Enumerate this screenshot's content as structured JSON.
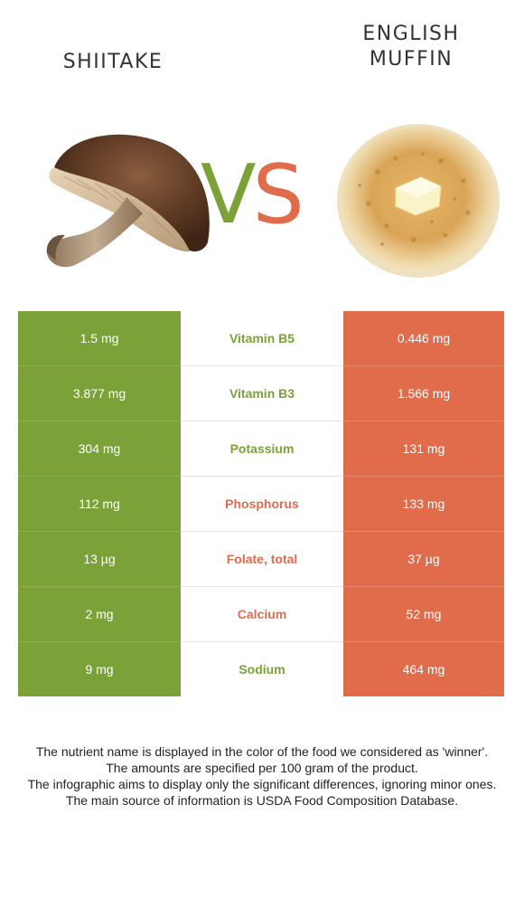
{
  "left_food": {
    "title": "SHIITAKE",
    "image_icon": "shiitake-mushroom-image",
    "color": "#7aa239"
  },
  "right_food": {
    "title_line1": "ENGLISH",
    "title_line2": "MUFFIN",
    "image_icon": "english-muffin-image",
    "color": "#e06c4b"
  },
  "vs": {
    "v": "V",
    "s": "S"
  },
  "rows": [
    {
      "left": "1.5 mg",
      "nutrient": "Vitamin B5",
      "right": "0.446 mg",
      "winner": "left"
    },
    {
      "left": "3.877 mg",
      "nutrient": "Vitamin B3",
      "right": "1.566 mg",
      "winner": "left"
    },
    {
      "left": "304 mg",
      "nutrient": "Potassium",
      "right": "131 mg",
      "winner": "left"
    },
    {
      "left": "112 mg",
      "nutrient": "Phosphorus",
      "right": "133 mg",
      "winner": "right"
    },
    {
      "left": "13 µg",
      "nutrient": "Folate, total",
      "right": "37 µg",
      "winner": "right"
    },
    {
      "left": "2 mg",
      "nutrient": "Calcium",
      "right": "52 mg",
      "winner": "right"
    },
    {
      "left": "9 mg",
      "nutrient": "Sodium",
      "right": "464 mg",
      "winner": "left"
    }
  ],
  "footnote": [
    "The nutrient name is displayed in the color of the food we considered as 'winner'.",
    "The amounts are specified per 100 gram of the product.",
    "The infographic aims to display only the significant differences, ignoring minor ones.",
    "The main source of information is USDA Food Composition Database."
  ]
}
